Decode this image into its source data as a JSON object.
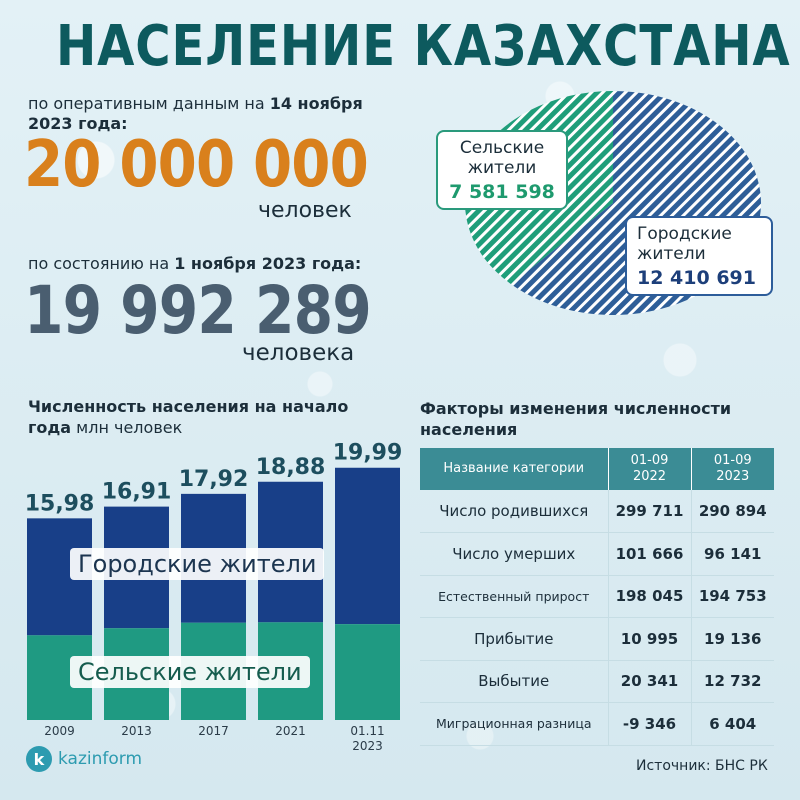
{
  "title": "НАСЕЛЕНИЕ КАЗАХСТАНА",
  "operative": {
    "caption_pre": "по оперативным данным на ",
    "caption_date": "14 ноября 2023 года:",
    "value": "20 000 000",
    "unit": "человек"
  },
  "state": {
    "caption_pre": "по состоянию на ",
    "caption_date": "1 ноября 2023 года:",
    "value": "19 992 289",
    "unit": "человека"
  },
  "pie": {
    "rural_label_1": "Сельские",
    "rural_label_2": "жители",
    "rural_value": "7 581 598",
    "urban_label_1": "Городские",
    "urban_label_2": "жители",
    "urban_value": "12 410 691",
    "colors": {
      "rural": "#1f9e7a",
      "urban": "#2e5e98"
    }
  },
  "bar_chart": {
    "title_bold": "Численность населения на начало года",
    "title_rest": " млн человек",
    "urban_label": "Городские жители",
    "rural_label": "Сельские жители"
  },
  "chart_data": [
    {
      "type": "pie",
      "categories": [
        "Сельские жители",
        "Городские жители"
      ],
      "values": [
        7581598,
        12410691
      ],
      "colors": [
        "#1f9e7a",
        "#2e5e98"
      ],
      "hatched": true
    },
    {
      "type": "bar",
      "stacked": true,
      "title": "Численность населения на начало года",
      "ylabel": "млн человек",
      "categories": [
        "2009",
        "2013",
        "2017",
        "2021",
        "01.11 2023"
      ],
      "totals": [
        "15,98",
        "16,91",
        "17,92",
        "18,88",
        "19,99"
      ],
      "total_values": [
        15.98,
        16.91,
        17.92,
        18.88,
        19.99
      ],
      "rural_share": [
        0.42,
        0.43,
        0.43,
        0.41,
        0.38
      ],
      "series": [
        {
          "name": "Сельские жители",
          "color": "#1f9a82"
        },
        {
          "name": "Городские жители",
          "color": "#183f88"
        }
      ],
      "ylim": [
        0,
        21
      ]
    }
  ],
  "table": {
    "title": "Факторы изменения численности населения",
    "headers": [
      "Название категории",
      "01-09 2022",
      "01-09 2023"
    ],
    "rows": [
      {
        "name": "Число родившихся",
        "v2022": "299 711",
        "v2023": "290 894"
      },
      {
        "name": "Число умерших",
        "v2022": "101 666",
        "v2023": "96 141"
      },
      {
        "name": "Естественный прирост",
        "v2022": "198 045",
        "v2023": "194 753"
      },
      {
        "name": "Прибытие",
        "v2022": "10 995",
        "v2023": "19 136"
      },
      {
        "name": "Выбытие",
        "v2022": "20 341",
        "v2023": "12 732"
      },
      {
        "name": "Миграционная разница",
        "v2022": "-9 346",
        "v2023": "6 404"
      }
    ]
  },
  "source": "Источник: БНС РК",
  "logo": {
    "letter": "k",
    "text": "kazinform"
  }
}
